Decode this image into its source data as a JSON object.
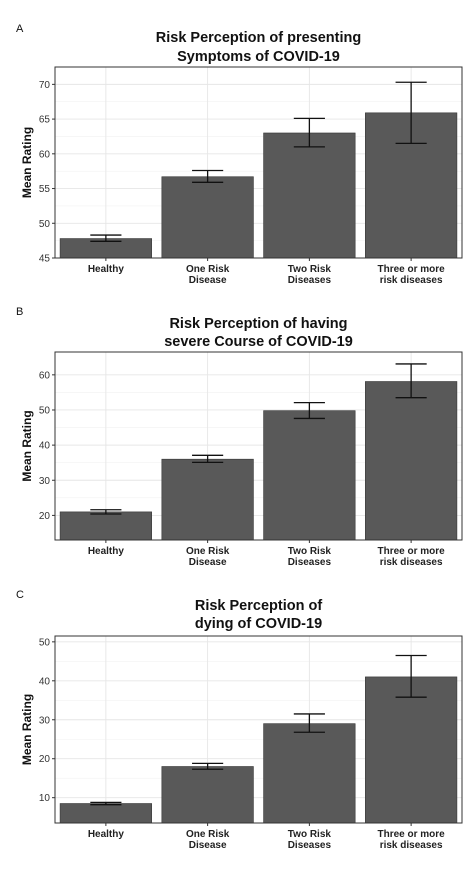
{
  "chart_data": [
    {
      "type": "bar",
      "panel_letter": "A",
      "title": [
        "Risk Perception of presenting",
        "Symptoms of COVID-19"
      ],
      "ylabel": "Mean Rating",
      "xlabel": "",
      "categories": [
        [
          "Healthy"
        ],
        [
          "One Risk",
          "Disease"
        ],
        [
          "Two Risk",
          "Diseases"
        ],
        [
          "Three or more",
          "risk diseases"
        ]
      ],
      "values": [
        47.8,
        56.7,
        63.0,
        65.9
      ],
      "error_low": [
        47.4,
        55.9,
        61.0,
        61.5
      ],
      "error_high": [
        48.3,
        57.6,
        65.1,
        70.3
      ],
      "ylim": [
        45,
        72.5
      ],
      "yticks": [
        45,
        50,
        55,
        60,
        65,
        70
      ],
      "grid": true
    },
    {
      "type": "bar",
      "panel_letter": "B",
      "title": [
        "Risk Perception of having",
        "severe Course of COVID-19"
      ],
      "ylabel": "Mean Rating",
      "xlabel": "",
      "categories": [
        [
          "Healthy"
        ],
        [
          "One Risk",
          "Disease"
        ],
        [
          "Two Risk",
          "Diseases"
        ],
        [
          "Three or more",
          "risk diseases"
        ]
      ],
      "values": [
        21.0,
        36.0,
        49.8,
        58.1
      ],
      "error_low": [
        20.4,
        35.1,
        47.6,
        53.5
      ],
      "error_high": [
        21.6,
        37.1,
        52.1,
        63.1
      ],
      "ylim": [
        13,
        66.5
      ],
      "yticks": [
        20,
        30,
        40,
        50,
        60
      ],
      "grid": true
    },
    {
      "type": "bar",
      "panel_letter": "C",
      "title": [
        "Risk Perception of",
        "dying of COVID-19"
      ],
      "ylabel": "Mean Rating",
      "xlabel": "",
      "categories": [
        [
          "Healthy"
        ],
        [
          "One Risk",
          "Disease"
        ],
        [
          "Two Risk",
          "Diseases"
        ],
        [
          "Three or more",
          "risk diseases"
        ]
      ],
      "values": [
        8.5,
        18.0,
        29.0,
        41.0
      ],
      "error_low": [
        8.2,
        17.3,
        26.8,
        35.8
      ],
      "error_high": [
        8.8,
        18.8,
        31.5,
        46.5
      ],
      "ylim": [
        3.5,
        51.5
      ],
      "yticks": [
        10,
        20,
        30,
        40,
        50
      ],
      "grid": true
    }
  ]
}
